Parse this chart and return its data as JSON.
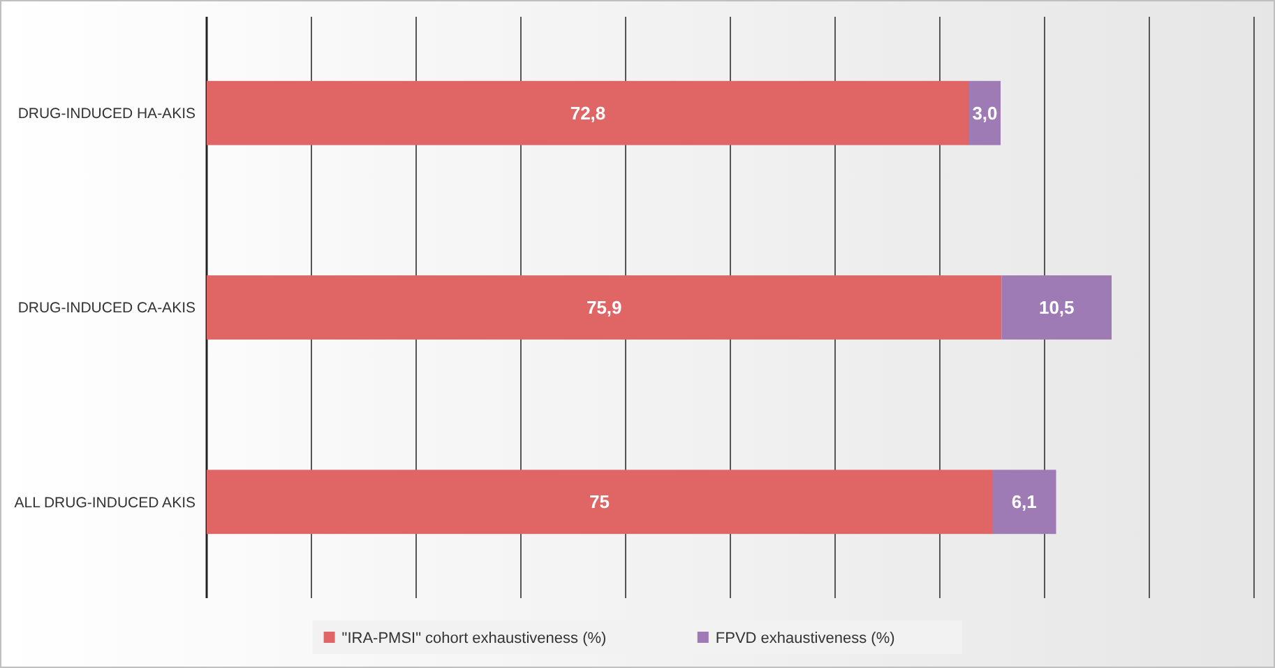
{
  "chart_data": {
    "type": "bar",
    "orientation": "horizontal",
    "stacked": true,
    "categories": [
      "DRUG-INDUCED HA-AKIS",
      "DRUG-INDUCED CA-AKIS",
      "ALL DRUG-INDUCED AKIS"
    ],
    "series": [
      {
        "name": "\"IRA-PMSI\" cohort exhaustiveness (%)",
        "color": "#e06666",
        "values": [
          72.8,
          75.9,
          75
        ],
        "value_labels": [
          "72,8",
          "75,9",
          "75"
        ]
      },
      {
        "name": "FPVD exhaustiveness (%)",
        "color": "#9e7bb5",
        "values": [
          3.0,
          10.5,
          6.1
        ],
        "value_labels": [
          "3,0",
          "10,5",
          "6,1"
        ]
      }
    ],
    "xlim": [
      0,
      100
    ],
    "xticks": [
      {
        "value": 0,
        "label": null
      },
      {
        "value": 10,
        "label": null
      },
      {
        "value": 20,
        "label": null
      },
      {
        "value": 30,
        "label": null
      },
      {
        "value": 40,
        "label": null
      },
      {
        "value": 50,
        "label": null
      },
      {
        "value": 60,
        "label": null
      },
      {
        "value": 70,
        "label": null
      },
      {
        "value": 80,
        "label": null
      },
      {
        "value": 90,
        "label": null
      },
      {
        "value": 100,
        "label": null
      }
    ],
    "grid": "x",
    "legend": "bottom",
    "tick_labels": "y"
  }
}
